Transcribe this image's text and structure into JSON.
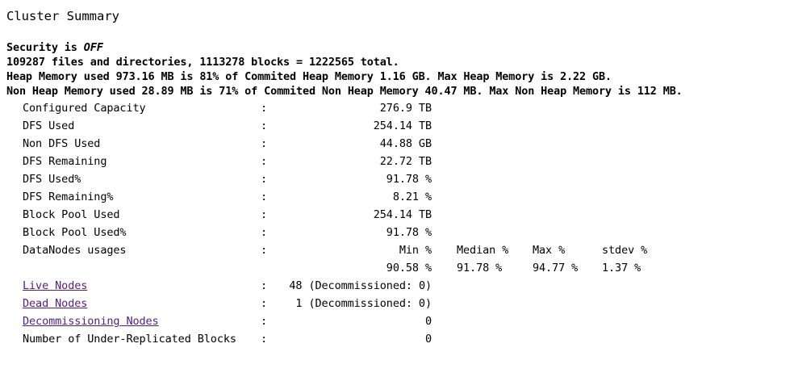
{
  "title": "Cluster Summary",
  "security": {
    "prefix": "Security is ",
    "state": "OFF"
  },
  "files_line": "109287 files and directories, 1113278 blocks = 1222565 total.",
  "heap_line": "Heap Memory used 973.16 MB is 81% of Commited Heap Memory 1.16 GB. Max Heap Memory is 2.22 GB.",
  "non_heap_line": "Non Heap Memory used 28.89 MB is 71% of Commited Non Heap Memory 40.47 MB. Max Non Heap Memory is 112 MB.",
  "separator": ":",
  "rows": [
    {
      "label": "Configured Capacity",
      "value": "276.9 TB"
    },
    {
      "label": "DFS Used",
      "value": "254.14 TB"
    },
    {
      "label": "Non DFS Used",
      "value": "44.88 GB"
    },
    {
      "label": "DFS Remaining",
      "value": "22.72 TB"
    },
    {
      "label": "DFS Used%",
      "value": "91.78 %"
    },
    {
      "label": "DFS Remaining%",
      "value": "8.21 %"
    },
    {
      "label": "Block Pool Used",
      "value": "254.14 TB"
    },
    {
      "label": "Block Pool Used%",
      "value": "91.78 %"
    }
  ],
  "datanodes_usages": {
    "label": "DataNodes usages",
    "headers": [
      "Min %",
      "Median %",
      "Max %",
      "stdev %"
    ],
    "values": [
      "90.58 %",
      "91.78 %",
      "94.77 %",
      "1.37 %"
    ]
  },
  "node_rows": [
    {
      "label": "Live Nodes",
      "value": "48 (Decommissioned: 0)"
    },
    {
      "label": "Dead Nodes",
      "value": "1 (Decommissioned: 0)"
    },
    {
      "label": "Decommissioning Nodes",
      "value": "0"
    }
  ],
  "under_replicated": {
    "label": "Number of Under-Replicated Blocks",
    "value": "0"
  }
}
